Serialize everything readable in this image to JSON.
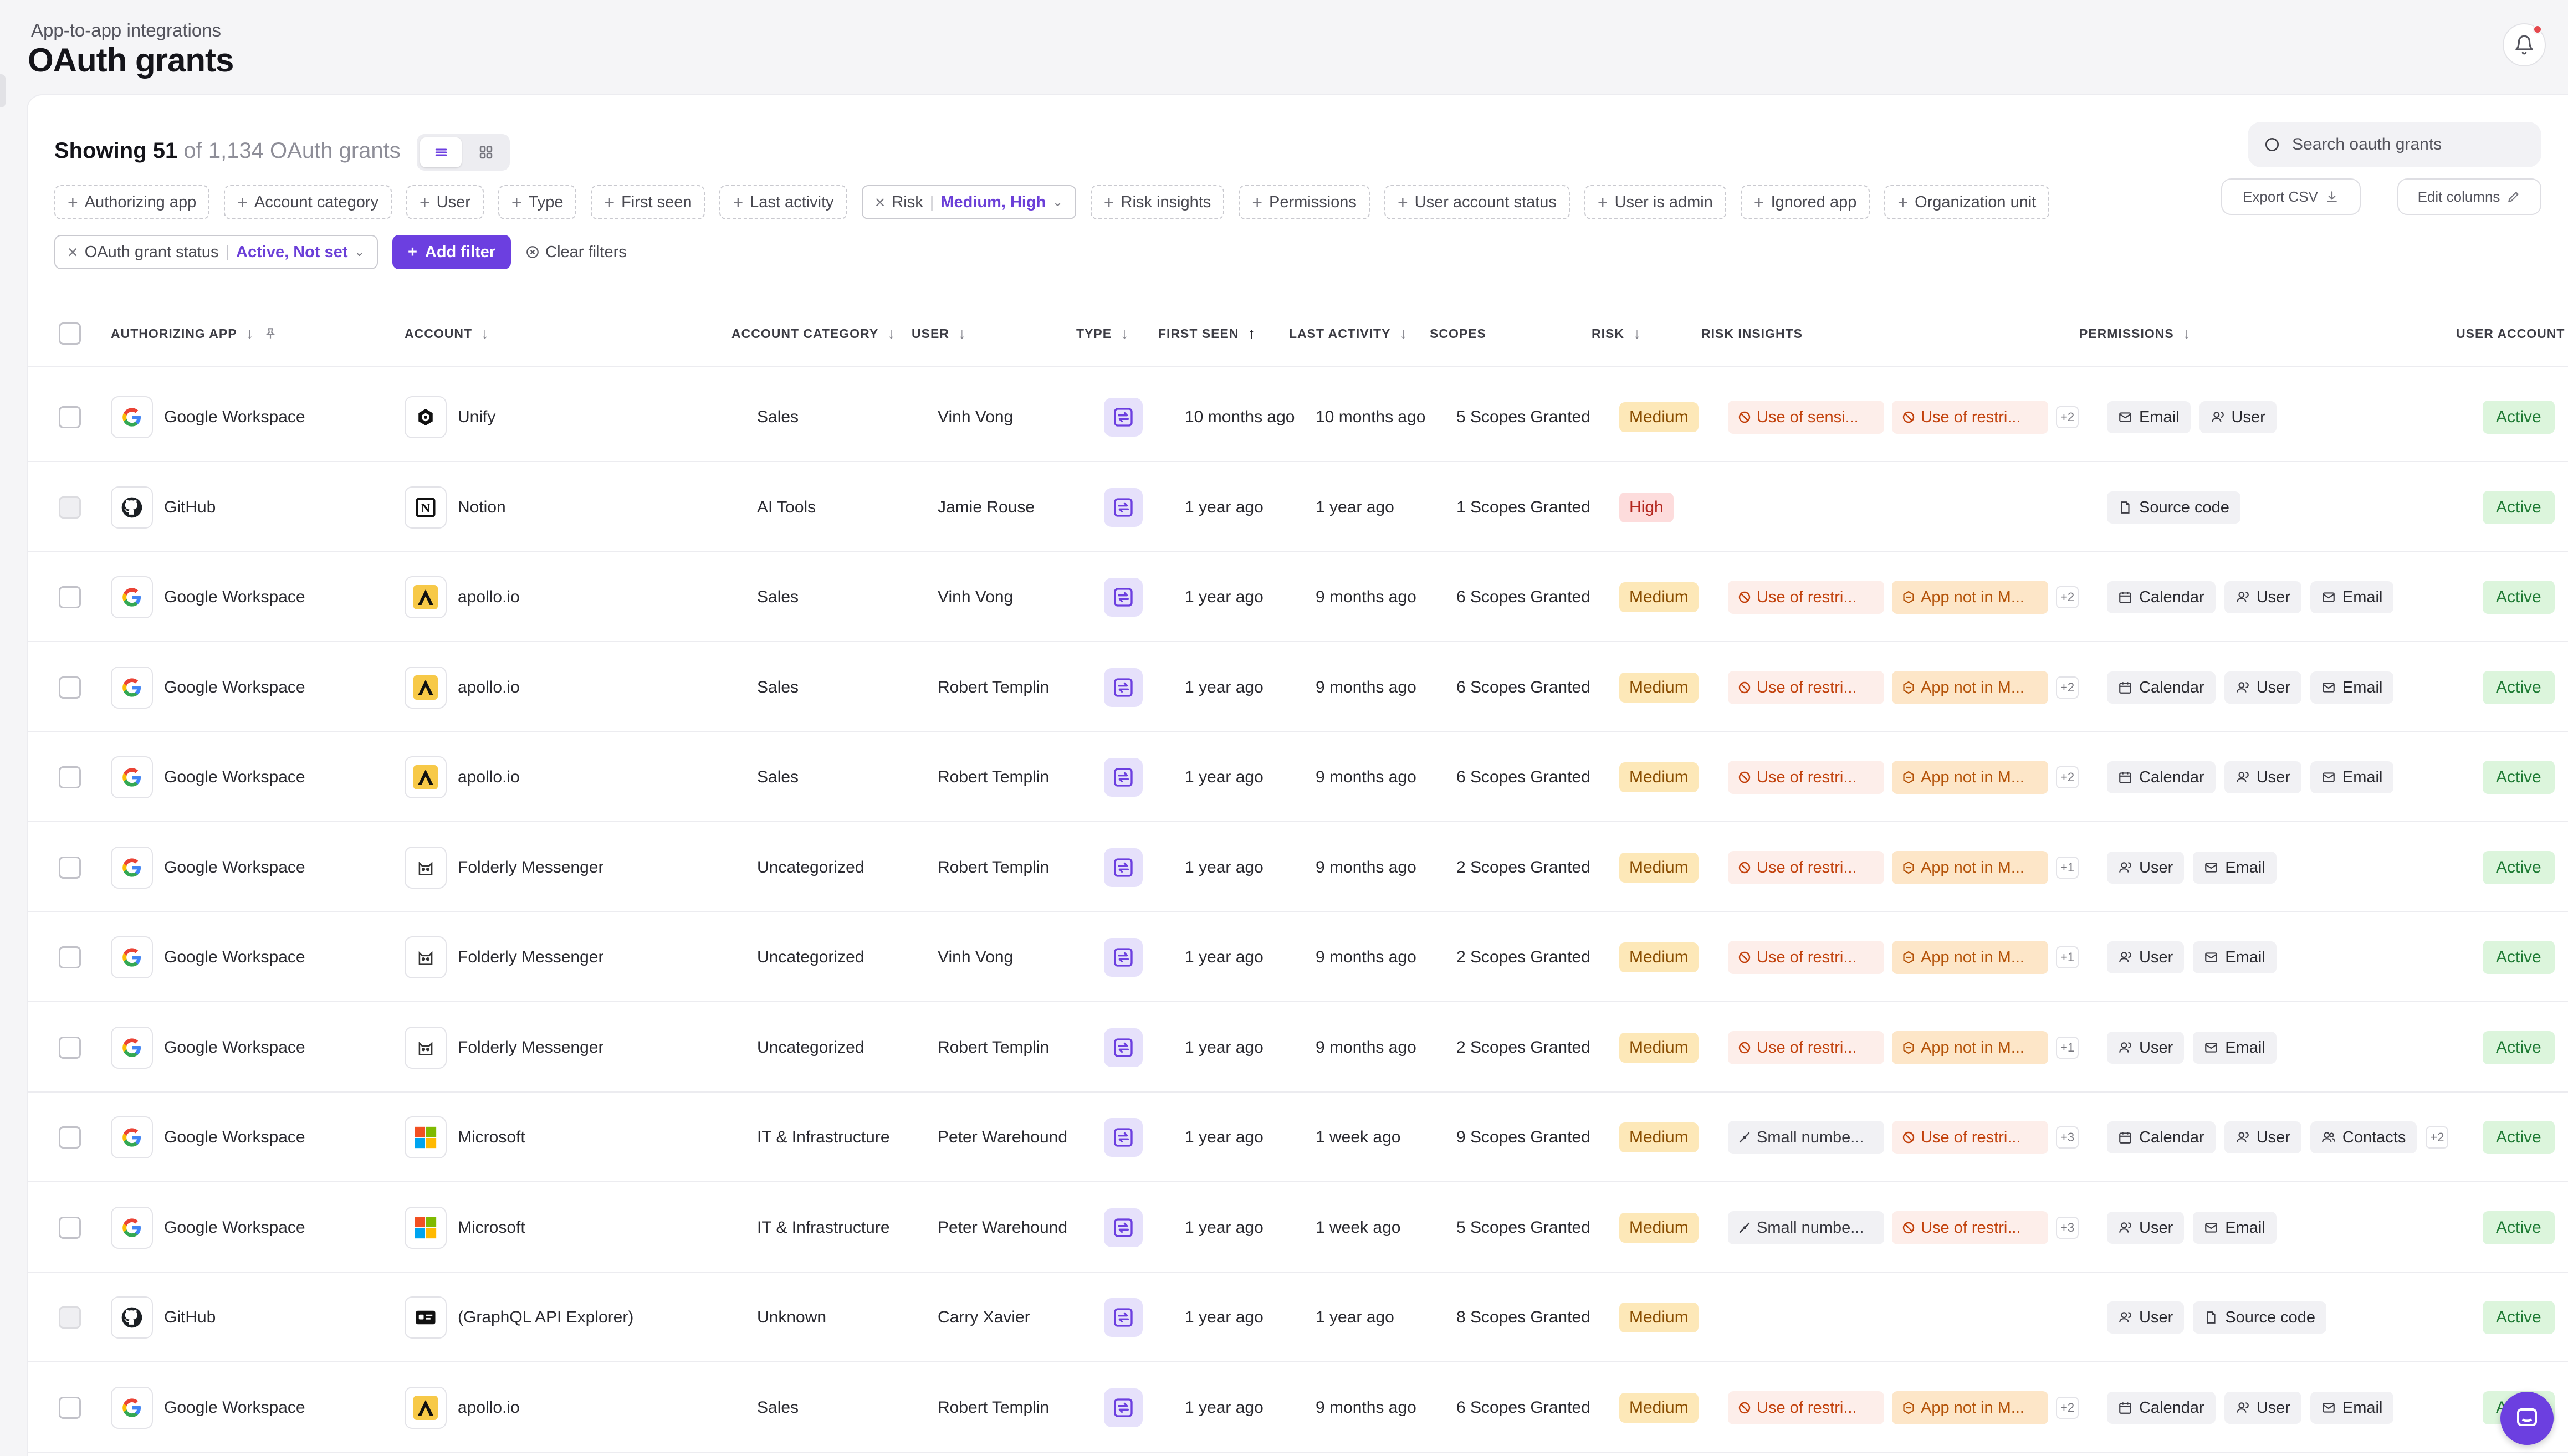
{
  "header": {
    "breadcrumb": "App-to-app integrations",
    "title": "OAuth grants"
  },
  "summary": {
    "showing": "Showing 51",
    "of_total": "of 1,134 OAuth grants"
  },
  "search": {
    "placeholder": "Search oauth grants"
  },
  "toolbar": {
    "export": "Export CSV",
    "edit_columns": "Edit columns"
  },
  "filters": {
    "row1": [
      {
        "label": "Authorizing app"
      },
      {
        "label": "Account category"
      },
      {
        "label": "User"
      },
      {
        "label": "Type"
      },
      {
        "label": "First seen"
      },
      {
        "label": "Last activity"
      },
      {
        "label": "Risk",
        "value": "Medium, High",
        "active": true
      },
      {
        "label": "Risk insights"
      },
      {
        "label": "Permissions"
      },
      {
        "label": "User account status"
      },
      {
        "label": "User is admin"
      },
      {
        "label": "Ignored app"
      },
      {
        "label": "Organization unit"
      }
    ],
    "status_filter": {
      "label": "OAuth grant status",
      "value": "Active, Not set"
    },
    "add_filter": "Add filter",
    "clear_filters": "Clear filters"
  },
  "columns": [
    "AUTHORIZING APP",
    "ACCOUNT",
    "ACCOUNT CATEGORY",
    "USER",
    "TYPE",
    "FIRST SEEN",
    "LAST ACTIVITY",
    "SCOPES",
    "RISK",
    "RISK INSIGHTS",
    "PERMISSIONS",
    "USER ACCOUNT ST"
  ],
  "colors": {
    "accent": "#6c3fe0",
    "risk_medium_bg": "#fde8b8",
    "risk_high_bg": "#fddcdc",
    "status_active_bg": "#dcf5dc"
  },
  "rows": [
    {
      "app": "Google Workspace",
      "app_icon": "google-icon",
      "account": "Unify",
      "account_icon": "unify-icon",
      "category": "Sales",
      "user": "Vinh Vong",
      "first_seen": "10 months ago",
      "last_activity": "10 months ago",
      "scopes": "5 Scopes Granted",
      "risk": "Medium",
      "insights": [
        {
          "text": "Use of sensi...",
          "tone": "red"
        },
        {
          "text": "Use of restri...",
          "tone": "red"
        }
      ],
      "insights_more": "+2",
      "permissions": [
        {
          "text": "Email",
          "icon": "mail-icon"
        },
        {
          "text": "User",
          "icon": "user-icon"
        }
      ],
      "permissions_more": "",
      "status": "Active",
      "selectable": true
    },
    {
      "app": "GitHub",
      "app_icon": "github-icon",
      "account": "Notion",
      "account_icon": "notion-icon",
      "category": "AI Tools",
      "user": "Jamie Rouse",
      "first_seen": "1 year ago",
      "last_activity": "1 year ago",
      "scopes": "1 Scopes Granted",
      "risk": "High",
      "insights": [],
      "insights_more": "",
      "permissions": [
        {
          "text": "Source code",
          "icon": "file-icon"
        }
      ],
      "permissions_more": "",
      "status": "Active",
      "selectable": false
    },
    {
      "app": "Google Workspace",
      "app_icon": "google-icon",
      "account": "apollo.io",
      "account_icon": "apollo-icon",
      "category": "Sales",
      "user": "Vinh Vong",
      "first_seen": "1 year ago",
      "last_activity": "9 months ago",
      "scopes": "6 Scopes Granted",
      "risk": "Medium",
      "insights": [
        {
          "text": "Use of restri...",
          "tone": "red"
        },
        {
          "text": "App not in M...",
          "tone": "orange"
        }
      ],
      "insights_more": "+2",
      "permissions": [
        {
          "text": "Calendar",
          "icon": "calendar-icon"
        },
        {
          "text": "User",
          "icon": "user-icon"
        },
        {
          "text": "Email",
          "icon": "mail-icon"
        }
      ],
      "permissions_more": "",
      "status": "Active",
      "selectable": true
    },
    {
      "app": "Google Workspace",
      "app_icon": "google-icon",
      "account": "apollo.io",
      "account_icon": "apollo-icon",
      "category": "Sales",
      "user": "Robert Templin",
      "first_seen": "1 year ago",
      "last_activity": "9 months ago",
      "scopes": "6 Scopes Granted",
      "risk": "Medium",
      "insights": [
        {
          "text": "Use of restri...",
          "tone": "red"
        },
        {
          "text": "App not in M...",
          "tone": "orange"
        }
      ],
      "insights_more": "+2",
      "permissions": [
        {
          "text": "Calendar",
          "icon": "calendar-icon"
        },
        {
          "text": "User",
          "icon": "user-icon"
        },
        {
          "text": "Email",
          "icon": "mail-icon"
        }
      ],
      "permissions_more": "",
      "status": "Active",
      "selectable": true
    },
    {
      "app": "Google Workspace",
      "app_icon": "google-icon",
      "account": "apollo.io",
      "account_icon": "apollo-icon",
      "category": "Sales",
      "user": "Robert Templin",
      "first_seen": "1 year ago",
      "last_activity": "9 months ago",
      "scopes": "6 Scopes Granted",
      "risk": "Medium",
      "insights": [
        {
          "text": "Use of restri...",
          "tone": "red"
        },
        {
          "text": "App not in M...",
          "tone": "orange"
        }
      ],
      "insights_more": "+2",
      "permissions": [
        {
          "text": "Calendar",
          "icon": "calendar-icon"
        },
        {
          "text": "User",
          "icon": "user-icon"
        },
        {
          "text": "Email",
          "icon": "mail-icon"
        }
      ],
      "permissions_more": "",
      "status": "Active",
      "selectable": true
    },
    {
      "app": "Google Workspace",
      "app_icon": "google-icon",
      "account": "Folderly Messenger",
      "account_icon": "folderly-icon",
      "category": "Uncategorized",
      "user": "Robert Templin",
      "first_seen": "1 year ago",
      "last_activity": "9 months ago",
      "scopes": "2 Scopes Granted",
      "risk": "Medium",
      "insights": [
        {
          "text": "Use of restri...",
          "tone": "red"
        },
        {
          "text": "App not in M...",
          "tone": "orange"
        }
      ],
      "insights_more": "+1",
      "permissions": [
        {
          "text": "User",
          "icon": "user-icon"
        },
        {
          "text": "Email",
          "icon": "mail-icon"
        }
      ],
      "permissions_more": "",
      "status": "Active",
      "selectable": true
    },
    {
      "app": "Google Workspace",
      "app_icon": "google-icon",
      "account": "Folderly Messenger",
      "account_icon": "folderly-icon",
      "category": "Uncategorized",
      "user": "Vinh Vong",
      "first_seen": "1 year ago",
      "last_activity": "9 months ago",
      "scopes": "2 Scopes Granted",
      "risk": "Medium",
      "insights": [
        {
          "text": "Use of restri...",
          "tone": "red"
        },
        {
          "text": "App not in M...",
          "tone": "orange"
        }
      ],
      "insights_more": "+1",
      "permissions": [
        {
          "text": "User",
          "icon": "user-icon"
        },
        {
          "text": "Email",
          "icon": "mail-icon"
        }
      ],
      "permissions_more": "",
      "status": "Active",
      "selectable": true
    },
    {
      "app": "Google Workspace",
      "app_icon": "google-icon",
      "account": "Folderly Messenger",
      "account_icon": "folderly-icon",
      "category": "Uncategorized",
      "user": "Robert Templin",
      "first_seen": "1 year ago",
      "last_activity": "9 months ago",
      "scopes": "2 Scopes Granted",
      "risk": "Medium",
      "insights": [
        {
          "text": "Use of restri...",
          "tone": "red"
        },
        {
          "text": "App not in M...",
          "tone": "orange"
        }
      ],
      "insights_more": "+1",
      "permissions": [
        {
          "text": "User",
          "icon": "user-icon"
        },
        {
          "text": "Email",
          "icon": "mail-icon"
        }
      ],
      "permissions_more": "",
      "status": "Active",
      "selectable": true
    },
    {
      "app": "Google Workspace",
      "app_icon": "google-icon",
      "account": "Microsoft",
      "account_icon": "microsoft-icon",
      "category": "IT & Infrastructure",
      "user": "Peter Warehound",
      "first_seen": "1 year ago",
      "last_activity": "1 week ago",
      "scopes": "9 Scopes Granted",
      "risk": "Medium",
      "insights": [
        {
          "text": "Small numbe...",
          "tone": "gray"
        },
        {
          "text": "Use of restri...",
          "tone": "red"
        }
      ],
      "insights_more": "+3",
      "permissions": [
        {
          "text": "Calendar",
          "icon": "calendar-icon"
        },
        {
          "text": "User",
          "icon": "user-icon"
        },
        {
          "text": "Contacts",
          "icon": "contacts-icon"
        }
      ],
      "permissions_more": "+2",
      "status": "Active",
      "selectable": true
    },
    {
      "app": "Google Workspace",
      "app_icon": "google-icon",
      "account": "Microsoft",
      "account_icon": "microsoft-icon",
      "category": "IT & Infrastructure",
      "user": "Peter Warehound",
      "first_seen": "1 year ago",
      "last_activity": "1 week ago",
      "scopes": "5 Scopes Granted",
      "risk": "Medium",
      "insights": [
        {
          "text": "Small numbe...",
          "tone": "gray"
        },
        {
          "text": "Use of restri...",
          "tone": "red"
        }
      ],
      "insights_more": "+3",
      "permissions": [
        {
          "text": "User",
          "icon": "user-icon"
        },
        {
          "text": "Email",
          "icon": "mail-icon"
        }
      ],
      "permissions_more": "",
      "status": "Active",
      "selectable": true
    },
    {
      "app": "GitHub",
      "app_icon": "github-icon",
      "account": "(GraphQL API Explorer)",
      "account_icon": "id-card-icon",
      "category": "Unknown",
      "user": "Carry Xavier",
      "first_seen": "1 year ago",
      "last_activity": "1 year ago",
      "scopes": "8 Scopes Granted",
      "risk": "Medium",
      "insights": [],
      "insights_more": "",
      "permissions": [
        {
          "text": "User",
          "icon": "user-icon"
        },
        {
          "text": "Source code",
          "icon": "file-icon"
        }
      ],
      "permissions_more": "",
      "status": "Active",
      "selectable": false
    },
    {
      "app": "Google Workspace",
      "app_icon": "google-icon",
      "account": "apollo.io",
      "account_icon": "apollo-icon",
      "category": "Sales",
      "user": "Robert Templin",
      "first_seen": "1 year ago",
      "last_activity": "9 months ago",
      "scopes": "6 Scopes Granted",
      "risk": "Medium",
      "insights": [
        {
          "text": "Use of restri...",
          "tone": "red"
        },
        {
          "text": "App not in M...",
          "tone": "orange"
        }
      ],
      "insights_more": "+2",
      "permissions": [
        {
          "text": "Calendar",
          "icon": "calendar-icon"
        },
        {
          "text": "User",
          "icon": "user-icon"
        },
        {
          "text": "Email",
          "icon": "mail-icon"
        }
      ],
      "permissions_more": "",
      "status": "Active",
      "selectable": true
    }
  ]
}
